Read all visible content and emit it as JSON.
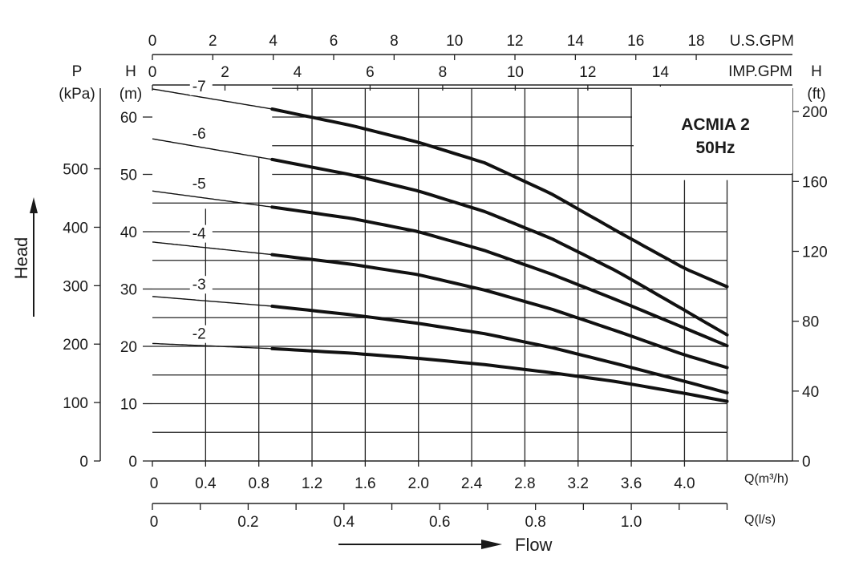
{
  "chart_data": {
    "type": "line",
    "title": "ACMIA 2",
    "subtitle": "50Hz",
    "x_primary": {
      "unit_label": "Q(m³/h)",
      "range": [
        0,
        4.32
      ],
      "ticks": [
        "0",
        "0.4",
        "0.8",
        "1.2",
        "1.6",
        "2.0",
        "2.4",
        "2.8",
        "3.2",
        "3.6",
        "4.0"
      ],
      "tick_values": [
        0,
        0.4,
        0.8,
        1.2,
        1.6,
        2.0,
        2.4,
        2.8,
        3.2,
        3.6,
        4.0
      ]
    },
    "x_ls": {
      "unit_label": "Q(l/s)",
      "ticks": [
        "0",
        "0.2",
        "0.4",
        "0.6",
        "0.8",
        "1.0"
      ],
      "tick_values": [
        0,
        0.2,
        0.4,
        0.6,
        0.8,
        1.0
      ]
    },
    "x_usgpm": {
      "unit_label": "U.S.GPM",
      "ticks": [
        "0",
        "2",
        "4",
        "6",
        "8",
        "10",
        "12",
        "14",
        "16",
        "18"
      ],
      "tick_values": [
        0,
        2,
        4,
        6,
        8,
        10,
        12,
        14,
        16,
        18
      ]
    },
    "x_impgpm": {
      "unit_label": "IMP.GPM",
      "ticks": [
        "0",
        "2",
        "4",
        "6",
        "8",
        "10",
        "12",
        "14"
      ],
      "tick_values": [
        0,
        2,
        4,
        6,
        8,
        10,
        12,
        14
      ]
    },
    "y_head_m": {
      "header": "H",
      "unit_label": "(m)",
      "range": [
        0,
        65
      ],
      "ticks": [
        "0",
        "10",
        "20",
        "30",
        "40",
        "50",
        "60"
      ],
      "tick_values": [
        0,
        10,
        20,
        30,
        40,
        50,
        60
      ]
    },
    "y_pressure_kpa": {
      "header": "P",
      "unit_label": "(kPa)",
      "ticks": [
        "0",
        "100",
        "200",
        "300",
        "400",
        "500"
      ],
      "tick_values": [
        0,
        100,
        200,
        300,
        400,
        500
      ]
    },
    "y_head_ft": {
      "header": "H",
      "unit_label": "(ft)",
      "ticks": [
        "0",
        "40",
        "80",
        "120",
        "160",
        "200"
      ],
      "tick_values": [
        0,
        40,
        80,
        120,
        160,
        200
      ]
    },
    "ylabel": "Head",
    "xlabel": "Flow",
    "grid": true,
    "series": [
      {
        "name": "-2",
        "label_at": [
          0.3,
          21.3
        ],
        "x": [
          0,
          0.9,
          1.5,
          2.0,
          2.5,
          3.0,
          3.5,
          4.0,
          4.32
        ],
        "y": [
          20.5,
          19.6,
          18.8,
          17.9,
          16.8,
          15.4,
          13.8,
          11.8,
          10.4
        ],
        "op_start": 0.9
      },
      {
        "name": "-3",
        "label_at": [
          0.3,
          29.9
        ],
        "x": [
          0,
          0.9,
          1.5,
          2.0,
          2.5,
          3.0,
          3.5,
          4.0,
          4.32
        ],
        "y": [
          28.7,
          27.0,
          25.5,
          24.0,
          22.2,
          19.8,
          16.9,
          13.9,
          11.9
        ],
        "op_start": 0.9
      },
      {
        "name": "-4",
        "label_at": [
          0.3,
          38.8
        ],
        "x": [
          0,
          0.9,
          1.5,
          2.0,
          2.5,
          3.0,
          3.5,
          4.0,
          4.32
        ],
        "y": [
          38.2,
          36.0,
          34.3,
          32.5,
          29.8,
          26.5,
          22.6,
          18.5,
          16.3
        ],
        "op_start": 0.9
      },
      {
        "name": "-5",
        "label_at": [
          0.3,
          47.5
        ],
        "x": [
          0,
          0.9,
          1.5,
          2.0,
          2.5,
          3.0,
          3.5,
          4.0,
          4.32
        ],
        "y": [
          47.1,
          44.3,
          42.3,
          40.0,
          36.7,
          32.6,
          28.0,
          23.2,
          20.1
        ],
        "op_start": 0.9
      },
      {
        "name": "-6",
        "label_at": [
          0.3,
          56.2
        ],
        "x": [
          0,
          0.9,
          1.5,
          2.0,
          2.5,
          3.0,
          3.5,
          4.0,
          4.32
        ],
        "y": [
          56.2,
          52.6,
          49.9,
          47.1,
          43.5,
          38.8,
          33.0,
          26.3,
          22.0
        ],
        "op_start": 0.9
      },
      {
        "name": "-7",
        "label_at": [
          0.3,
          64.5
        ],
        "x": [
          0,
          0.9,
          1.5,
          2.0,
          2.5,
          3.0,
          3.5,
          4.0,
          4.32
        ],
        "y": [
          64.9,
          61.4,
          58.5,
          55.6,
          52.0,
          46.6,
          40.0,
          33.6,
          30.4
        ],
        "op_start": 0.9
      }
    ]
  }
}
